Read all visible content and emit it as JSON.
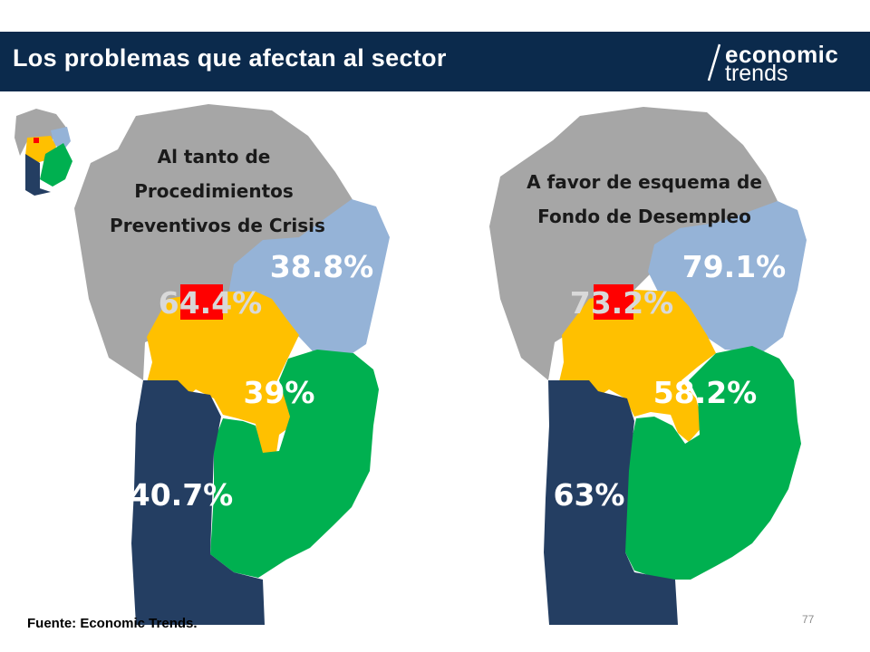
{
  "header": {
    "title": "Los problemas que afectan al sector",
    "logo_line1": "economic",
    "logo_line2": "trends"
  },
  "colors": {
    "header_bg": "#0b2a4c",
    "north": "#a6a6a6",
    "northeast": "#95b3d7",
    "center": "#ffc000",
    "capital": "#ff0000",
    "southwest": "#243e62",
    "southeast": "#00b050"
  },
  "maps": [
    {
      "title_lines": [
        "Al tanto de",
        "Procedimientos",
        "Preventivos de Crisis"
      ],
      "regions": {
        "northeast": "38.8%",
        "capital": "64.4%",
        "center": "39%",
        "southwest": "40.7%"
      }
    },
    {
      "title_lines": [
        "A favor de esquema de",
        "Fondo de Desempleo"
      ],
      "regions": {
        "northeast": "79.1%",
        "capital": "73.2%",
        "center": "58.2%",
        "southwest": "63%"
      }
    }
  ],
  "footer": {
    "source": "Fuente: Economic Trends.",
    "page_number": "77"
  }
}
